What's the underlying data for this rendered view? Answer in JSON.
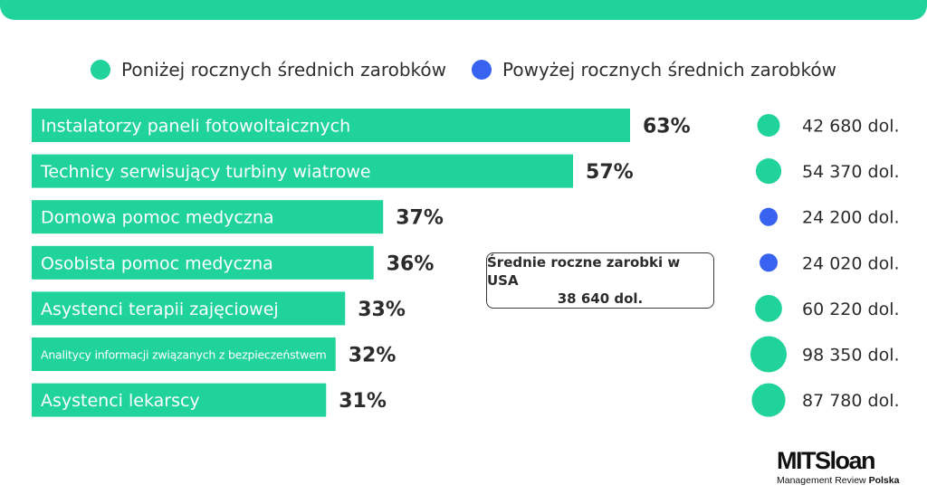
{
  "legend": {
    "below_label": "Poniżej rocznych średnich zarobków",
    "above_label": "Powyżej rocznych średnich zarobków"
  },
  "callout": {
    "line1": "Średnie roczne zarobki w USA",
    "line2": "38 640 dol."
  },
  "logo": {
    "main": "MITSloan",
    "sub": "Management Review",
    "sub_bold": "Polska"
  },
  "colors": {
    "green": "#1fd39a",
    "blue": "#3763f0",
    "text": "#2b2b2b"
  },
  "chart_data": {
    "type": "bar",
    "orientation": "horizontal",
    "categories": [
      "Instalatorzy paneli fotowoltaicznych",
      "Technicy serwisujący turbiny wiatrowe",
      "Domowa pomoc medyczna",
      "Osobista pomoc medyczna",
      "Asystenci terapii zajęciowej",
      "Analitycy informacji związanych z bezpieczeństwem",
      "Asystenci lekarscy"
    ],
    "values": [
      63,
      57,
      37,
      36,
      33,
      32,
      31
    ],
    "value_labels": [
      "63%",
      "57%",
      "37%",
      "36%",
      "33%",
      "32%",
      "31%"
    ],
    "salaries": [
      42680,
      54370,
      24200,
      24020,
      60220,
      98350,
      87780
    ],
    "salary_labels": [
      "42 680 dol.",
      "54 370 dol.",
      "24 200 dol.",
      "24 020 dol.",
      "60 220 dol.",
      "98 350 dol.",
      "87 780 dol."
    ],
    "salary_group": [
      "above",
      "above",
      "below",
      "below",
      "above",
      "above",
      "above"
    ],
    "average_salary": 38640,
    "xlim": [
      0,
      63
    ]
  }
}
